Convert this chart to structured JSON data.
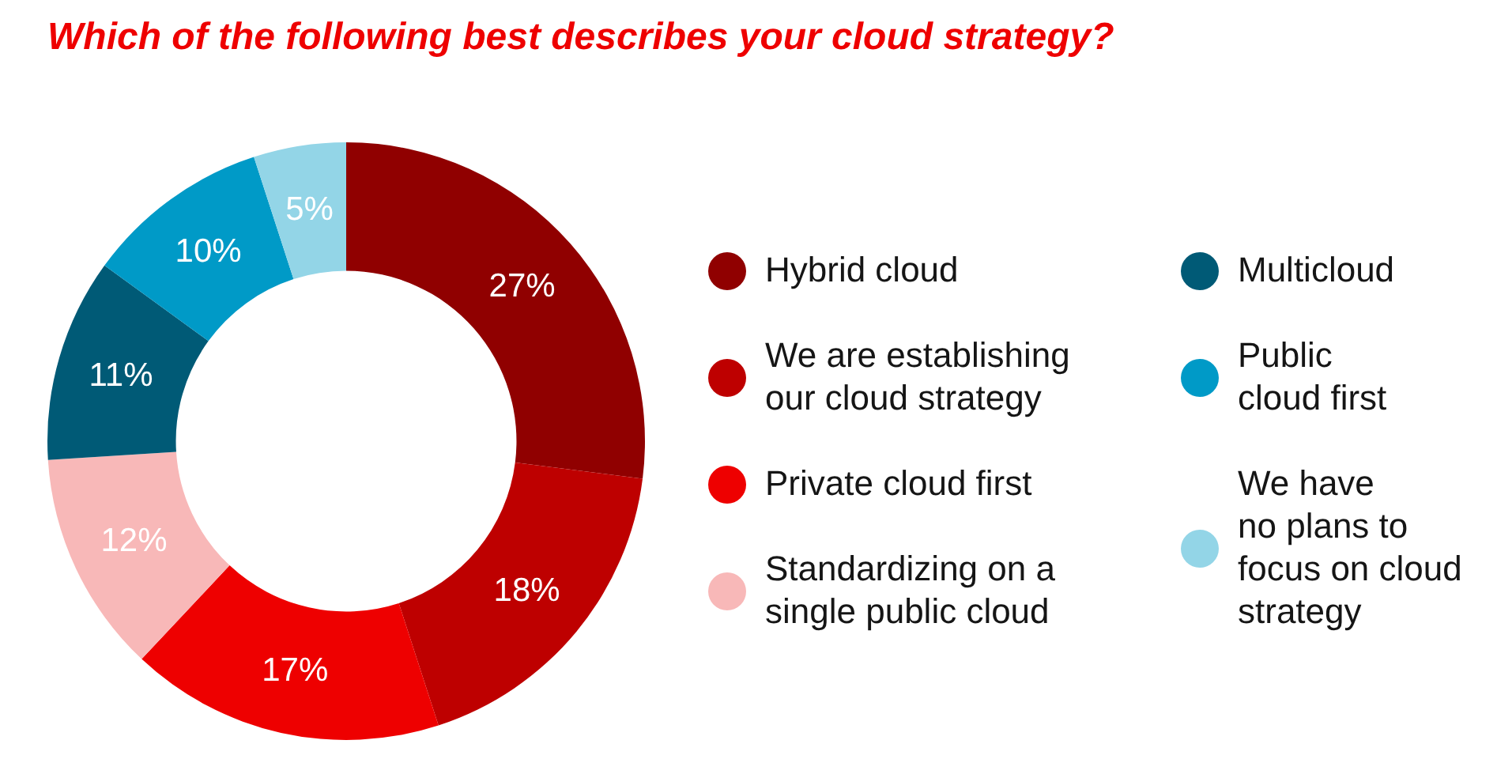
{
  "chart_data": {
    "type": "donut",
    "title": "Which of the following best describes your cloud strategy?",
    "categories": [
      "Hybrid cloud",
      "We are establishing\nour cloud strategy",
      "Private cloud first",
      "Standardizing on a\nsingle public cloud",
      "Multicloud",
      "Public\ncloud first",
      "We have\nno plans to\nfocus on cloud\nstrategy"
    ],
    "values": [
      27,
      18,
      17,
      12,
      11,
      10,
      5
    ],
    "colors": [
      "#900000",
      "#be0000",
      "#ee0000",
      "#f8b8b8",
      "#005a76",
      "#009ac7",
      "#93d5e7"
    ],
    "value_labels": [
      "27%",
      "18%",
      "17%",
      "12%",
      "11%",
      "10%",
      "5%"
    ],
    "legend": "right"
  }
}
